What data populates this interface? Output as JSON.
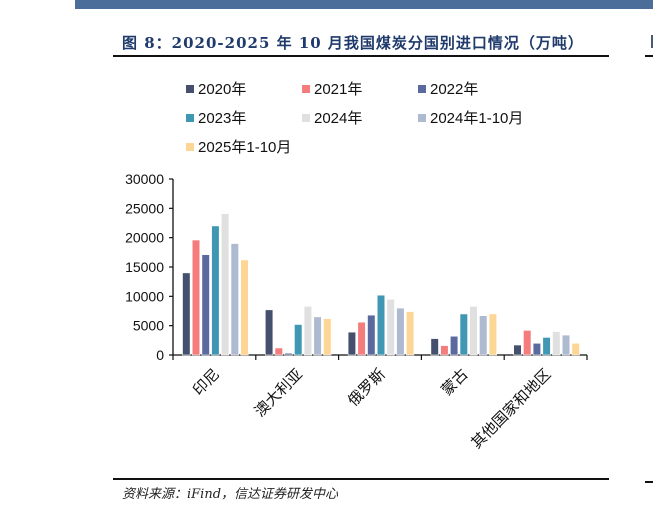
{
  "header": {
    "title": "图 8：2020-2025 年 10 月我国煤炭分国别进口情况（万吨）"
  },
  "footer": {
    "source": "资料来源：iFind，信达证券研发中心"
  },
  "legend": {
    "items": [
      {
        "label": "2020年",
        "color": "#454f6e"
      },
      {
        "label": "2021年",
        "color": "#f47c7c"
      },
      {
        "label": "2022年",
        "color": "#5a6a9e"
      },
      {
        "label": "2023年",
        "color": "#3f97b3"
      },
      {
        "label": "2024年",
        "color": "#e0e0e0"
      },
      {
        "label": "2024年1-10月",
        "color": "#aebad0"
      },
      {
        "label": "2025年1-10月",
        "color": "#fdd594"
      }
    ]
  },
  "chart_data": {
    "type": "bar",
    "title": "图 8：2020-2025 年 10 月我国煤炭分国别进口情况（万吨）",
    "xlabel": "",
    "ylabel": "万吨",
    "ylim": [
      0,
      30000
    ],
    "yticks": [
      0,
      5000,
      10000,
      15000,
      20000,
      25000,
      30000
    ],
    "grid": false,
    "legend_position": "top",
    "categories": [
      "印尼",
      "澳大利亚",
      "俄罗斯",
      "蒙古",
      "其他国家和地区"
    ],
    "series": [
      {
        "name": "2020年",
        "color": "#454f6e",
        "values": [
          14000,
          7700,
          3900,
          2800,
          1700
        ]
      },
      {
        "name": "2021年",
        "color": "#f47c7c",
        "values": [
          19600,
          1200,
          5600,
          1600,
          4200
        ]
      },
      {
        "name": "2022年",
        "color": "#5a6a9e",
        "values": [
          17100,
          300,
          6800,
          3200,
          2000
        ]
      },
      {
        "name": "2023年",
        "color": "#3f97b3",
        "values": [
          22000,
          5200,
          10200,
          7000,
          3000
        ]
      },
      {
        "name": "2024年",
        "color": "#e0e0e0",
        "values": [
          24100,
          8300,
          9500,
          8300,
          4000
        ]
      },
      {
        "name": "2024年1-10月",
        "color": "#aebad0",
        "values": [
          19000,
          6500,
          8000,
          6700,
          3400
        ]
      },
      {
        "name": "2025年1-10月",
        "color": "#fdd594",
        "values": [
          16200,
          6200,
          7400,
          7000,
          2000
        ]
      }
    ]
  }
}
